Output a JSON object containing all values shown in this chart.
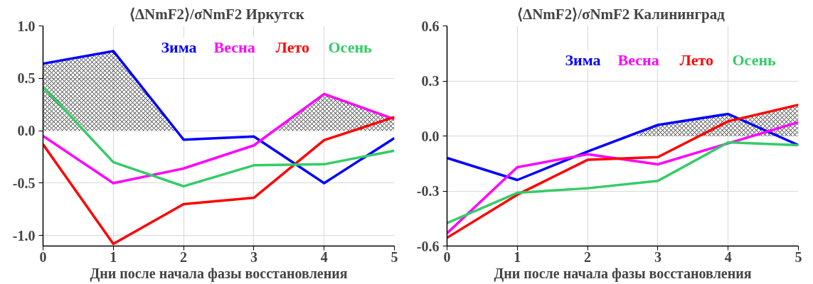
{
  "chart_data": [
    {
      "type": "line",
      "title": "⟨ΔNmF2⟩/σNmF2  Иркутск",
      "xlabel": "Дни после начала фазы восстановления",
      "x": [
        0,
        1,
        2,
        3,
        4,
        5
      ],
      "xlim": [
        0,
        5
      ],
      "xticks": [
        0,
        1,
        2,
        3,
        4,
        5
      ],
      "ylim": [
        -1.1,
        1.0
      ],
      "yticks": [
        {
          "value": -1.0,
          "label": "-1.0"
        },
        {
          "value": -0.5,
          "label": "-0.5"
        },
        {
          "value": 0,
          "label": "0.0"
        },
        {
          "value": 0.5,
          "label": "0.5"
        },
        {
          "value": 1.0,
          "label": "1.0"
        }
      ],
      "grid": true,
      "legend": "top right",
      "marker": "none",
      "line_style": "solid",
      "series": [
        {
          "type": "area",
          "color": "#000000",
          "x": [
            0,
            1,
            1.88,
            3.32,
            4,
            5
          ],
          "values": [
            0.64,
            0.76,
            0,
            0,
            0.35,
            0.11
          ]
        },
        {
          "name": "Зима",
          "color": "#0000ff",
          "values": [
            0.64,
            0.76,
            -0.085,
            -0.055,
            -0.5,
            -0.07
          ]
        },
        {
          "name": "Весна",
          "color": "#ff00ff",
          "values": [
            -0.05,
            -0.5,
            -0.36,
            -0.14,
            0.35,
            0.11
          ]
        },
        {
          "name": "Лето",
          "color": "#ff0000",
          "values": [
            -0.13,
            -1.08,
            -0.7,
            -0.64,
            -0.09,
            0.13
          ]
        },
        {
          "name": "Осень",
          "color": "#33cc66",
          "values": [
            0.42,
            -0.3,
            -0.53,
            -0.33,
            -0.32,
            -0.19
          ]
        }
      ]
    },
    {
      "type": "line",
      "title": "⟨ΔNmF2⟩/σNmF2  Калининград",
      "xlabel": "Дни после начала фазы восстановления",
      "x": [
        0,
        1,
        2,
        3,
        4,
        5
      ],
      "xlim": [
        0,
        5
      ],
      "xticks": [
        0,
        1,
        2,
        3,
        4,
        5
      ],
      "ylim": [
        -0.6,
        0.6
      ],
      "yticks": [
        {
          "value": -0.6,
          "label": "-0.6"
        },
        {
          "value": -0.3,
          "label": "-0.3"
        },
        {
          "value": 0,
          "label": "0.0"
        },
        {
          "value": 0.3,
          "label": "0.3"
        },
        {
          "value": 0.6,
          "label": "0.6"
        }
      ],
      "grid": true,
      "legend": "top right",
      "marker": "none",
      "line_style": "solid",
      "series": [
        {
          "type": "area",
          "color": "#000000",
          "x": [
            2.68,
            3,
            4,
            4.15,
            5
          ],
          "values": [
            0,
            0.06,
            0.12,
            0.095,
            0.17
          ]
        },
        {
          "name": "Зима",
          "color": "#0000ff",
          "values": [
            -0.12,
            -0.24,
            -0.085,
            0.06,
            0.12,
            -0.05
          ]
        },
        {
          "name": "Весна",
          "color": "#ff00ff",
          "values": [
            -0.53,
            -0.17,
            -0.1,
            -0.155,
            -0.04,
            0.075
          ]
        },
        {
          "name": "Лето",
          "color": "#ff0000",
          "values": [
            -0.555,
            -0.32,
            -0.13,
            -0.115,
            0.08,
            0.17
          ]
        },
        {
          "name": "Осень",
          "color": "#33cc66",
          "values": [
            -0.475,
            -0.31,
            -0.285,
            -0.245,
            -0.035,
            -0.05
          ]
        }
      ]
    }
  ]
}
